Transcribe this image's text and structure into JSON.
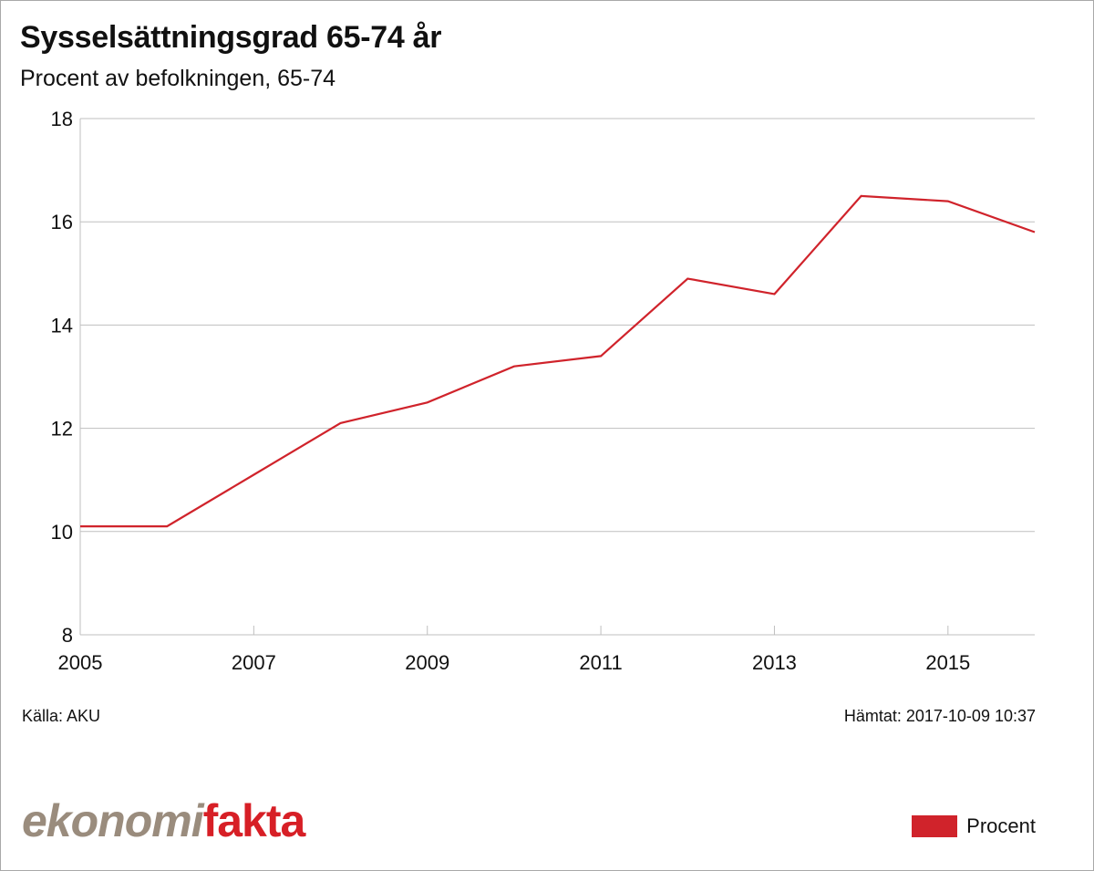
{
  "header": {
    "title": "Sysselsättningsgrad 65-74 år",
    "subtitle": "Procent av befolkningen, 65-74"
  },
  "footer": {
    "source": "Källa: AKU",
    "fetched": "Hämtat: 2017-10-09 10:37",
    "logo_part1": "ekonomi",
    "logo_part2": "fakta"
  },
  "legend": {
    "items": [
      {
        "label": "Procent",
        "color": "#d0232b"
      }
    ]
  },
  "chart_data": {
    "type": "line",
    "title": "Sysselsättningsgrad 65-74 år",
    "subtitle": "Procent av befolkningen, 65-74",
    "xlabel": "",
    "ylabel": "",
    "x": [
      2005,
      2006,
      2007,
      2008,
      2009,
      2010,
      2011,
      2012,
      2013,
      2014,
      2015,
      2016
    ],
    "series": [
      {
        "name": "Procent",
        "color": "#d0232b",
        "values": [
          10.1,
          10.1,
          11.1,
          12.1,
          12.5,
          13.2,
          13.4,
          14.9,
          14.6,
          16.5,
          16.4,
          15.8
        ]
      }
    ],
    "ylim": [
      8,
      18
    ],
    "yticks": [
      8,
      10,
      12,
      14,
      16,
      18
    ],
    "xticks": [
      "2005",
      "2007",
      "2009",
      "2011",
      "2013",
      "2015"
    ],
    "grid": "horizontal",
    "legend_position": "bottom-right",
    "source": "Källa: AKU",
    "fetched": "Hämtat: 2017-10-09 10:37"
  }
}
